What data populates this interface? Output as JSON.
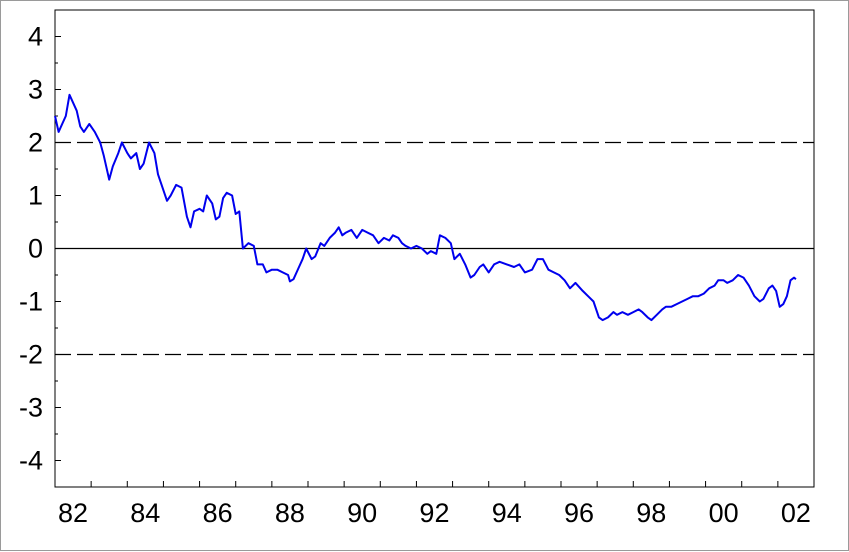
{
  "chart_data": {
    "type": "line",
    "title": "",
    "xlabel": "",
    "ylabel": "",
    "xlim": [
      1982.0,
      2003.0
    ],
    "ylim": [
      -4.5,
      4.5
    ],
    "x_tick_labels": [
      "82",
      "84",
      "86",
      "88",
      "90",
      "92",
      "94",
      "96",
      "98",
      "00",
      "02"
    ],
    "y_tick_labels": [
      "4",
      "3",
      "2",
      "1",
      "0",
      "-1",
      "-2",
      "-3",
      "-4"
    ],
    "grid": false,
    "reference_lines": [
      {
        "y": 2,
        "style": "dashed"
      },
      {
        "y": 0,
        "style": "solid"
      },
      {
        "y": -2,
        "style": "dashed"
      }
    ],
    "series": [
      {
        "color": "#0000ee",
        "points": [
          [
            1982.0,
            2.5
          ],
          [
            1982.1,
            2.2
          ],
          [
            1982.3,
            2.5
          ],
          [
            1982.4,
            2.9
          ],
          [
            1982.6,
            2.6
          ],
          [
            1982.7,
            2.3
          ],
          [
            1982.8,
            2.2
          ],
          [
            1982.95,
            2.35
          ],
          [
            1983.1,
            2.2
          ],
          [
            1983.25,
            2.0
          ],
          [
            1983.35,
            1.75
          ],
          [
            1983.5,
            1.3
          ],
          [
            1983.6,
            1.55
          ],
          [
            1983.75,
            1.8
          ],
          [
            1983.85,
            2.0
          ],
          [
            1984.0,
            1.8
          ],
          [
            1984.1,
            1.7
          ],
          [
            1984.25,
            1.8
          ],
          [
            1984.35,
            1.5
          ],
          [
            1984.45,
            1.6
          ],
          [
            1984.6,
            2.0
          ],
          [
            1984.75,
            1.8
          ],
          [
            1984.85,
            1.4
          ],
          [
            1985.0,
            1.1
          ],
          [
            1985.1,
            0.9
          ],
          [
            1985.2,
            1.0
          ],
          [
            1985.35,
            1.2
          ],
          [
            1985.5,
            1.15
          ],
          [
            1985.65,
            0.6
          ],
          [
            1985.75,
            0.4
          ],
          [
            1985.85,
            0.7
          ],
          [
            1986.0,
            0.75
          ],
          [
            1986.1,
            0.7
          ],
          [
            1986.2,
            1.0
          ],
          [
            1986.35,
            0.85
          ],
          [
            1986.45,
            0.55
          ],
          [
            1986.55,
            0.6
          ],
          [
            1986.65,
            0.95
          ],
          [
            1986.75,
            1.05
          ],
          [
            1986.9,
            1.0
          ],
          [
            1987.0,
            0.65
          ],
          [
            1987.1,
            0.7
          ],
          [
            1987.2,
            0.0
          ],
          [
            1987.35,
            0.1
          ],
          [
            1987.5,
            0.05
          ],
          [
            1987.6,
            -0.3
          ],
          [
            1987.75,
            -0.3
          ],
          [
            1987.85,
            -0.45
          ],
          [
            1988.0,
            -0.4
          ],
          [
            1988.15,
            -0.4
          ],
          [
            1988.3,
            -0.45
          ],
          [
            1988.45,
            -0.5
          ],
          [
            1988.5,
            -0.62
          ],
          [
            1988.6,
            -0.58
          ],
          [
            1988.75,
            -0.35
          ],
          [
            1988.85,
            -0.2
          ],
          [
            1988.95,
            0.0
          ],
          [
            1989.1,
            -0.2
          ],
          [
            1989.2,
            -0.15
          ],
          [
            1989.35,
            0.1
          ],
          [
            1989.45,
            0.05
          ],
          [
            1989.6,
            0.2
          ],
          [
            1989.75,
            0.3
          ],
          [
            1989.85,
            0.4
          ],
          [
            1989.95,
            0.25
          ],
          [
            1990.05,
            0.3
          ],
          [
            1990.2,
            0.35
          ],
          [
            1990.35,
            0.2
          ],
          [
            1990.5,
            0.35
          ],
          [
            1990.65,
            0.3
          ],
          [
            1990.8,
            0.25
          ],
          [
            1990.95,
            0.1
          ],
          [
            1991.1,
            0.2
          ],
          [
            1991.25,
            0.15
          ],
          [
            1991.35,
            0.25
          ],
          [
            1991.5,
            0.2
          ],
          [
            1991.6,
            0.1
          ],
          [
            1991.7,
            0.05
          ],
          [
            1991.85,
            0.0
          ],
          [
            1992.0,
            0.05
          ],
          [
            1992.15,
            0.0
          ],
          [
            1992.3,
            -0.1
          ],
          [
            1992.4,
            -0.05
          ],
          [
            1992.55,
            -0.1
          ],
          [
            1992.65,
            0.25
          ],
          [
            1992.8,
            0.2
          ],
          [
            1992.95,
            0.1
          ],
          [
            1993.05,
            -0.2
          ],
          [
            1993.2,
            -0.1
          ],
          [
            1993.35,
            -0.3
          ],
          [
            1993.5,
            -0.55
          ],
          [
            1993.6,
            -0.5
          ],
          [
            1993.75,
            -0.35
          ],
          [
            1993.85,
            -0.3
          ],
          [
            1994.0,
            -0.45
          ],
          [
            1994.15,
            -0.3
          ],
          [
            1994.3,
            -0.25
          ],
          [
            1994.5,
            -0.3
          ],
          [
            1994.7,
            -0.35
          ],
          [
            1994.85,
            -0.3
          ],
          [
            1995.0,
            -0.45
          ],
          [
            1995.2,
            -0.4
          ],
          [
            1995.35,
            -0.2
          ],
          [
            1995.5,
            -0.2
          ],
          [
            1995.65,
            -0.4
          ],
          [
            1995.8,
            -0.45
          ],
          [
            1995.95,
            -0.5
          ],
          [
            1996.1,
            -0.6
          ],
          [
            1996.25,
            -0.75
          ],
          [
            1996.4,
            -0.65
          ],
          [
            1996.6,
            -0.8
          ],
          [
            1996.75,
            -0.9
          ],
          [
            1996.9,
            -1.0
          ],
          [
            1997.05,
            -1.3
          ],
          [
            1997.15,
            -1.35
          ],
          [
            1997.3,
            -1.3
          ],
          [
            1997.45,
            -1.2
          ],
          [
            1997.55,
            -1.25
          ],
          [
            1997.7,
            -1.2
          ],
          [
            1997.85,
            -1.25
          ],
          [
            1998.0,
            -1.2
          ],
          [
            1998.15,
            -1.15
          ],
          [
            1998.25,
            -1.2
          ],
          [
            1998.4,
            -1.3
          ],
          [
            1998.5,
            -1.35
          ],
          [
            1998.65,
            -1.25
          ],
          [
            1998.8,
            -1.15
          ],
          [
            1998.9,
            -1.1
          ],
          [
            1999.05,
            -1.1
          ],
          [
            1999.2,
            -1.05
          ],
          [
            1999.35,
            -1.0
          ],
          [
            1999.5,
            -0.95
          ],
          [
            1999.65,
            -0.9
          ],
          [
            1999.8,
            -0.9
          ],
          [
            1999.95,
            -0.85
          ],
          [
            2000.1,
            -0.75
          ],
          [
            2000.25,
            -0.7
          ],
          [
            2000.35,
            -0.6
          ],
          [
            2000.5,
            -0.6
          ],
          [
            2000.6,
            -0.65
          ],
          [
            2000.75,
            -0.6
          ],
          [
            2000.9,
            -0.5
          ],
          [
            2001.05,
            -0.55
          ],
          [
            2001.2,
            -0.7
          ],
          [
            2001.35,
            -0.9
          ],
          [
            2001.5,
            -1.0
          ],
          [
            2001.6,
            -0.95
          ],
          [
            2001.75,
            -0.75
          ],
          [
            2001.85,
            -0.7
          ],
          [
            2001.95,
            -0.8
          ],
          [
            2002.05,
            -1.1
          ],
          [
            2002.15,
            -1.05
          ],
          [
            2002.25,
            -0.9
          ],
          [
            2002.35,
            -0.6
          ],
          [
            2002.45,
            -0.55
          ],
          [
            2002.5,
            -0.58
          ]
        ]
      }
    ]
  }
}
